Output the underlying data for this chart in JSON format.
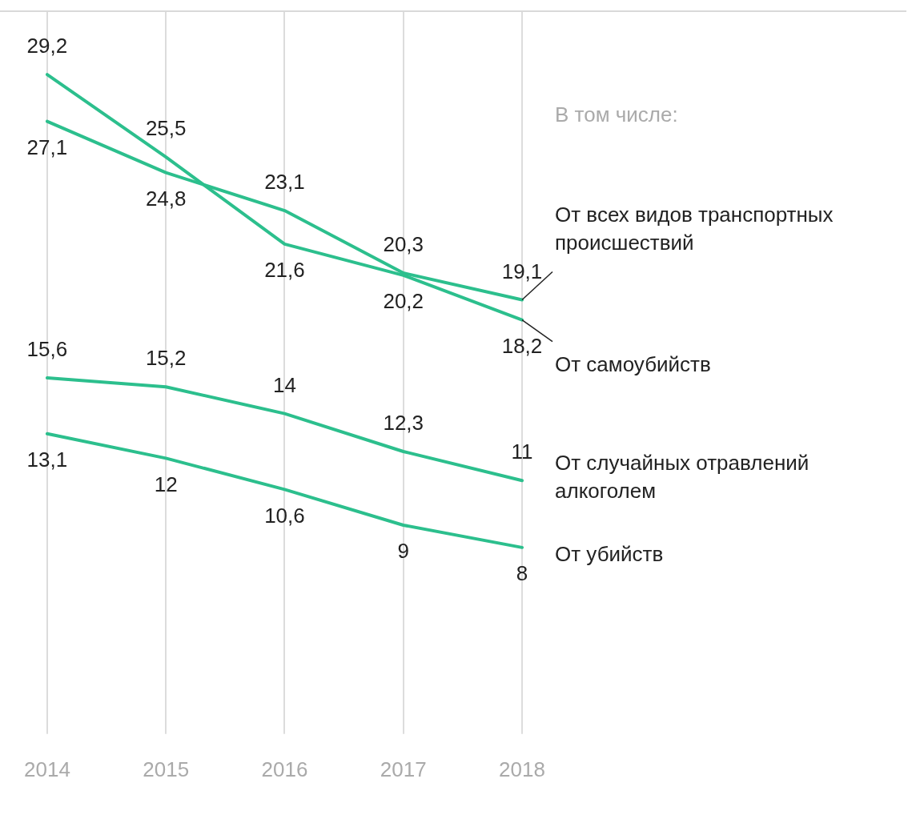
{
  "chart_data": {
    "type": "line",
    "categories": [
      "2014",
      "2015",
      "2016",
      "2017",
      "2018"
    ],
    "ylim": [
      0,
      32
    ],
    "grid": "x",
    "marker": "none",
    "line_style": "solid",
    "legend": false,
    "annotations": [
      "В том числе:"
    ],
    "series": [
      {
        "name": "От всех видов транспортных происшествий",
        "color": "#2cbf8d",
        "values": [
          27.1,
          24.8,
          23.1,
          20.3,
          19.1
        ],
        "value_labels": [
          "27,1",
          "24,8",
          "23,1",
          "20,3",
          "19,1"
        ]
      },
      {
        "name": "От самоубийств",
        "color": "#2cbf8d",
        "values": [
          29.2,
          25.5,
          21.6,
          20.2,
          18.2
        ],
        "value_labels": [
          "29,2",
          "25,5",
          "21,6",
          "20,2",
          "18,2"
        ]
      },
      {
        "name": "От случайных отравлений алкоголем",
        "color": "#2cbf8d",
        "values": [
          15.6,
          15.2,
          14,
          12.3,
          11
        ],
        "value_labels": [
          "15,6",
          "15,2",
          "14",
          "12,3",
          "11"
        ]
      },
      {
        "name": "От убийств",
        "color": "#2cbf8d",
        "values": [
          13.1,
          12,
          10.6,
          9,
          8
        ],
        "value_labels": [
          "13,1",
          "12",
          "10,6",
          "9",
          "8"
        ]
      }
    ]
  }
}
